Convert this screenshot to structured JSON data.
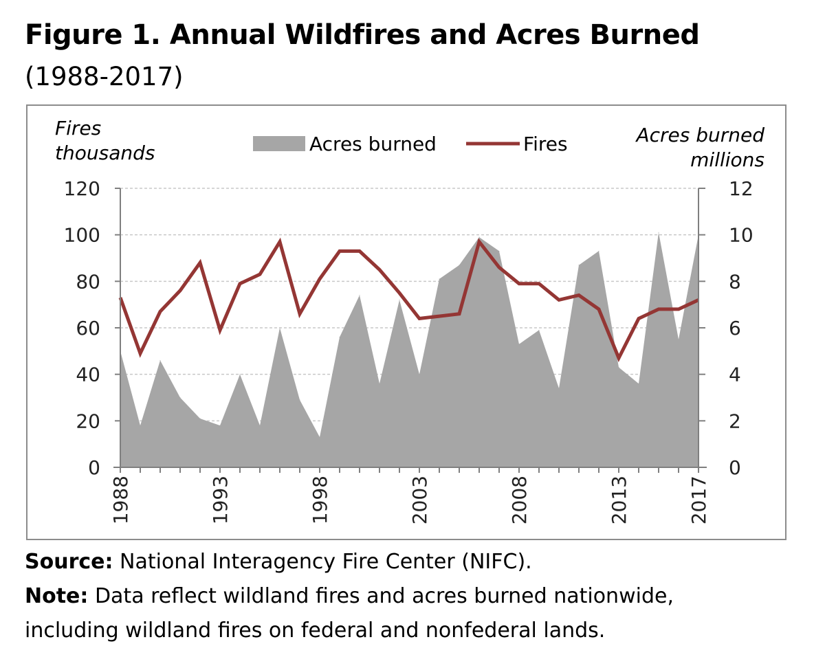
{
  "figure": {
    "title": "Figure 1. Annual Wildfires and Acres Burned",
    "subtitle": "(1988-2017)"
  },
  "chart_data": {
    "type": "area",
    "left_axis": {
      "label_line1": "Fires",
      "label_line2": "thousands",
      "ylim": [
        0,
        120
      ],
      "ticks": [
        "0",
        "20",
        "40",
        "60",
        "80",
        "100",
        "120"
      ]
    },
    "right_axis": {
      "label_line1": "Acres burned",
      "label_line2": "millions",
      "ylim": [
        0,
        12
      ],
      "ticks": [
        "0",
        "2",
        "4",
        "6",
        "8",
        "10",
        "12"
      ]
    },
    "x_tick_labels": [
      "1988",
      "1993",
      "1998",
      "2003",
      "2008",
      "2013",
      "2017"
    ],
    "years": [
      1988,
      1989,
      1990,
      1991,
      1992,
      1993,
      1994,
      1995,
      1996,
      1997,
      1998,
      1999,
      2000,
      2001,
      2002,
      2003,
      2004,
      2005,
      2006,
      2007,
      2008,
      2009,
      2010,
      2011,
      2012,
      2013,
      2014,
      2015,
      2016,
      2017
    ],
    "legend": {
      "placement": "top",
      "entries": [
        "Acres burned",
        "Fires"
      ]
    },
    "grid": "horizontal dashed",
    "series": [
      {
        "name": "Acres burned",
        "type": "area",
        "axis": "right",
        "color": "#a6a6a6",
        "values": [
          5.0,
          1.8,
          4.6,
          3.0,
          2.1,
          1.8,
          4.0,
          1.8,
          6.0,
          2.9,
          1.3,
          5.6,
          7.4,
          3.6,
          7.2,
          4.0,
          8.1,
          8.7,
          9.9,
          9.3,
          5.3,
          5.9,
          3.4,
          8.7,
          9.3,
          4.3,
          3.6,
          10.1,
          5.5,
          10.0
        ]
      },
      {
        "name": "Fires",
        "type": "line",
        "axis": "left",
        "color": "#943634",
        "values": [
          73,
          49,
          67,
          76,
          88,
          59,
          79,
          83,
          97,
          66,
          81,
          93,
          93,
          85,
          75,
          64,
          65,
          66,
          97,
          86,
          79,
          79,
          72,
          74,
          68,
          47,
          64,
          68,
          68,
          72
        ]
      }
    ]
  },
  "footer": {
    "source_label": "Source:",
    "source_text": " National Interagency Fire Center (NIFC).",
    "note_label": "Note:",
    "note_text": " Data reflect wildland fires and acres burned nationwide,",
    "note_text2": "including wildland fires on federal and nonfederal lands."
  }
}
